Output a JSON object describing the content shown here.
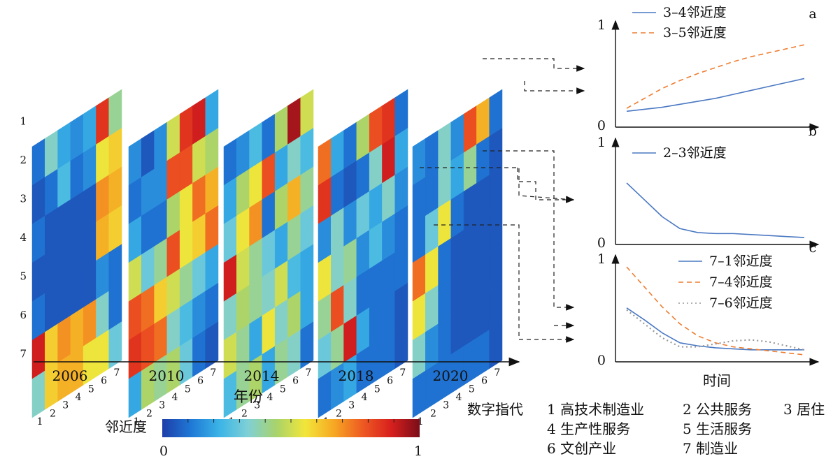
{
  "heatmap_panel": {
    "years": [
      "2006",
      "2010",
      "2014",
      "2018",
      "2020"
    ],
    "row_labels": [
      "1",
      "2",
      "3",
      "4",
      "5",
      "6",
      "7"
    ],
    "col_labels": [
      "1",
      "2",
      "3",
      "4",
      "5",
      "6",
      "7"
    ],
    "x_axis_label": "年份"
  },
  "colorbar": {
    "label": "邻近度",
    "min_label": "0",
    "max_label": "1",
    "colors": [
      "#1e3ea8",
      "#1f78d6",
      "#3bb4e6",
      "#7fd0d6",
      "#a9d36a",
      "#f2e63a",
      "#f6a823",
      "#ee5a22",
      "#d8201e",
      "#7a0d18"
    ]
  },
  "chart_data": [
    {
      "type": "heatmap",
      "title": "2006",
      "rows": [
        "1",
        "2",
        "3",
        "4",
        "5",
        "6",
        "7"
      ],
      "cols": [
        "1",
        "2",
        "3",
        "4",
        "5",
        "6",
        "7"
      ],
      "values": [
        [
          0.1,
          0.35,
          0.2,
          0.15,
          0.2,
          0.85,
          0.4
        ],
        [
          0.05,
          0.1,
          0.25,
          0.1,
          0.15,
          0.55,
          0.6
        ],
        [
          0.1,
          0.05,
          0.05,
          0.05,
          0.05,
          0.7,
          0.65
        ],
        [
          0.05,
          0.05,
          0.05,
          0.05,
          0.05,
          0.65,
          0.6
        ],
        [
          0.1,
          0.05,
          0.05,
          0.05,
          0.05,
          0.15,
          0.1
        ],
        [
          0.9,
          0.6,
          0.7,
          0.65,
          0.7,
          0.35,
          0.1
        ],
        [
          0.35,
          0.6,
          0.65,
          0.65,
          0.55,
          0.55,
          0.3
        ]
      ]
    },
    {
      "type": "heatmap",
      "title": "2010",
      "rows": [
        "1",
        "2",
        "3",
        "4",
        "5",
        "6",
        "7"
      ],
      "cols": [
        "1",
        "2",
        "3",
        "4",
        "5",
        "6",
        "7"
      ],
      "values": [
        [
          0.15,
          0.05,
          0.15,
          0.5,
          0.85,
          0.9,
          0.2
        ],
        [
          0.1,
          0.15,
          0.15,
          0.8,
          0.8,
          0.5,
          0.45
        ],
        [
          0.2,
          0.1,
          0.1,
          0.45,
          0.55,
          0.75,
          0.65
        ],
        [
          0.5,
          0.3,
          0.4,
          0.8,
          0.55,
          0.6,
          0.75
        ],
        [
          0.8,
          0.75,
          0.6,
          0.5,
          0.4,
          0.3,
          0.2
        ],
        [
          0.85,
          0.8,
          0.75,
          0.35,
          0.25,
          0.15,
          0.1
        ],
        [
          0.2,
          0.45,
          0.4,
          0.45,
          0.3,
          0.1,
          0.05
        ]
      ]
    },
    {
      "type": "heatmap",
      "title": "2014",
      "rows": [
        "1",
        "2",
        "3",
        "4",
        "5",
        "6",
        "7"
      ],
      "cols": [
        "1",
        "2",
        "3",
        "4",
        "5",
        "6",
        "7"
      ],
      "values": [
        [
          0.1,
          0.15,
          0.25,
          0.1,
          0.45,
          0.95,
          0.5
        ],
        [
          0.2,
          0.45,
          0.55,
          0.8,
          0.2,
          0.35,
          0.25
        ],
        [
          0.3,
          0.55,
          0.7,
          0.1,
          0.45,
          0.65,
          0.4
        ],
        [
          0.9,
          0.5,
          0.4,
          0.3,
          0.2,
          0.4,
          0.3
        ],
        [
          0.35,
          0.45,
          0.4,
          0.35,
          0.5,
          0.25,
          0.2
        ],
        [
          0.5,
          0.4,
          0.2,
          0.55,
          0.35,
          0.45,
          0.2
        ],
        [
          0.25,
          0.4,
          0.45,
          0.2,
          0.4,
          0.35,
          0.1
        ]
      ]
    },
    {
      "type": "heatmap",
      "title": "2018",
      "rows": [
        "1",
        "2",
        "3",
        "4",
        "5",
        "6",
        "7"
      ],
      "cols": [
        "1",
        "2",
        "3",
        "4",
        "5",
        "6",
        "7"
      ],
      "values": [
        [
          0.75,
          0.2,
          0.1,
          0.45,
          0.8,
          0.85,
          0.1
        ],
        [
          0.85,
          0.1,
          0.05,
          0.1,
          0.35,
          0.9,
          0.2
        ],
        [
          0.15,
          0.35,
          0.15,
          0.3,
          0.2,
          0.35,
          0.15
        ],
        [
          0.55,
          0.35,
          0.4,
          0.15,
          0.25,
          0.15,
          0.1
        ],
        [
          0.4,
          0.8,
          0.35,
          0.1,
          0.1,
          0.1,
          0.1
        ],
        [
          0.3,
          0.4,
          0.9,
          0.2,
          0.1,
          0.1,
          0.05
        ],
        [
          0.1,
          0.15,
          0.2,
          0.1,
          0.1,
          0.1,
          0.05
        ]
      ]
    },
    {
      "type": "heatmap",
      "title": "2020",
      "rows": [
        "1",
        "2",
        "3",
        "4",
        "5",
        "6",
        "7"
      ],
      "cols": [
        "1",
        "2",
        "3",
        "4",
        "5",
        "6",
        "7"
      ],
      "values": [
        [
          0.15,
          0.1,
          0.35,
          0.15,
          0.8,
          0.65,
          0.1
        ],
        [
          0.1,
          0.1,
          0.35,
          0.2,
          0.4,
          0.1,
          0.05
        ],
        [
          0.1,
          0.3,
          0.55,
          0.1,
          0.05,
          0.05,
          0.05
        ],
        [
          0.75,
          0.55,
          0.1,
          0.05,
          0.05,
          0.05,
          0.05
        ],
        [
          0.55,
          0.35,
          0.1,
          0.05,
          0.05,
          0.05,
          0.05
        ],
        [
          0.35,
          0.15,
          0.1,
          0.05,
          0.05,
          0.05,
          0.05
        ],
        [
          0.1,
          0.1,
          0.1,
          0.1,
          0.1,
          0.1,
          0.05
        ]
      ]
    },
    {
      "type": "line",
      "panel_label": "a",
      "ylim": [
        0,
        1
      ],
      "y_ticks": [
        "0",
        "1"
      ],
      "x": [
        0,
        0.1,
        0.2,
        0.3,
        0.4,
        0.5,
        0.6,
        0.7,
        0.8,
        0.9,
        1.0
      ],
      "series": [
        {
          "name": "3–4邻近度",
          "style": "solid",
          "color": "#4a78c2",
          "values": [
            0.16,
            0.18,
            0.2,
            0.23,
            0.26,
            0.29,
            0.33,
            0.37,
            0.41,
            0.45,
            0.49
          ]
        },
        {
          "name": "3–5邻近度",
          "style": "dashed",
          "color": "#ee7d31",
          "values": [
            0.19,
            0.29,
            0.39,
            0.47,
            0.54,
            0.6,
            0.66,
            0.71,
            0.75,
            0.79,
            0.83
          ]
        }
      ]
    },
    {
      "type": "line",
      "panel_label": "b",
      "ylim": [
        0,
        1
      ],
      "y_ticks": [
        "0",
        "1"
      ],
      "x": [
        0,
        0.1,
        0.2,
        0.3,
        0.4,
        0.5,
        0.6,
        0.7,
        0.8,
        0.9,
        1.0
      ],
      "series": [
        {
          "name": "2–3邻近度",
          "style": "solid",
          "color": "#4a78c2",
          "values": [
            0.62,
            0.45,
            0.28,
            0.16,
            0.12,
            0.11,
            0.11,
            0.1,
            0.09,
            0.08,
            0.07
          ]
        }
      ]
    },
    {
      "type": "line",
      "panel_label": "c",
      "ylim": [
        0,
        1
      ],
      "y_ticks": [
        "0",
        "1"
      ],
      "xlabel": "时间",
      "x": [
        0,
        0.1,
        0.2,
        0.3,
        0.4,
        0.5,
        0.6,
        0.7,
        0.8,
        0.9,
        1.0
      ],
      "series": [
        {
          "name": "7–1邻近度",
          "style": "solid",
          "color": "#4a78c2",
          "values": [
            0.54,
            0.42,
            0.29,
            0.19,
            0.16,
            0.14,
            0.13,
            0.12,
            0.12,
            0.12,
            0.12
          ]
        },
        {
          "name": "7–4邻近度",
          "style": "dashed",
          "color": "#ee7d31",
          "values": [
            0.95,
            0.75,
            0.55,
            0.38,
            0.26,
            0.19,
            0.15,
            0.13,
            0.11,
            0.09,
            0.07
          ]
        },
        {
          "name": "7–6邻近度",
          "style": "dotted",
          "color": "#9a9a9a",
          "values": [
            0.52,
            0.38,
            0.24,
            0.15,
            0.15,
            0.18,
            0.21,
            0.22,
            0.2,
            0.16,
            0.12
          ]
        }
      ]
    }
  ],
  "legend_codes": {
    "title": "数字指代",
    "items": [
      "1 高技术制造业",
      "2 公共服务",
      "3 居住",
      "4 生产性服务",
      "5 生活服务",
      "6 文创产业",
      "7 制造业"
    ]
  }
}
